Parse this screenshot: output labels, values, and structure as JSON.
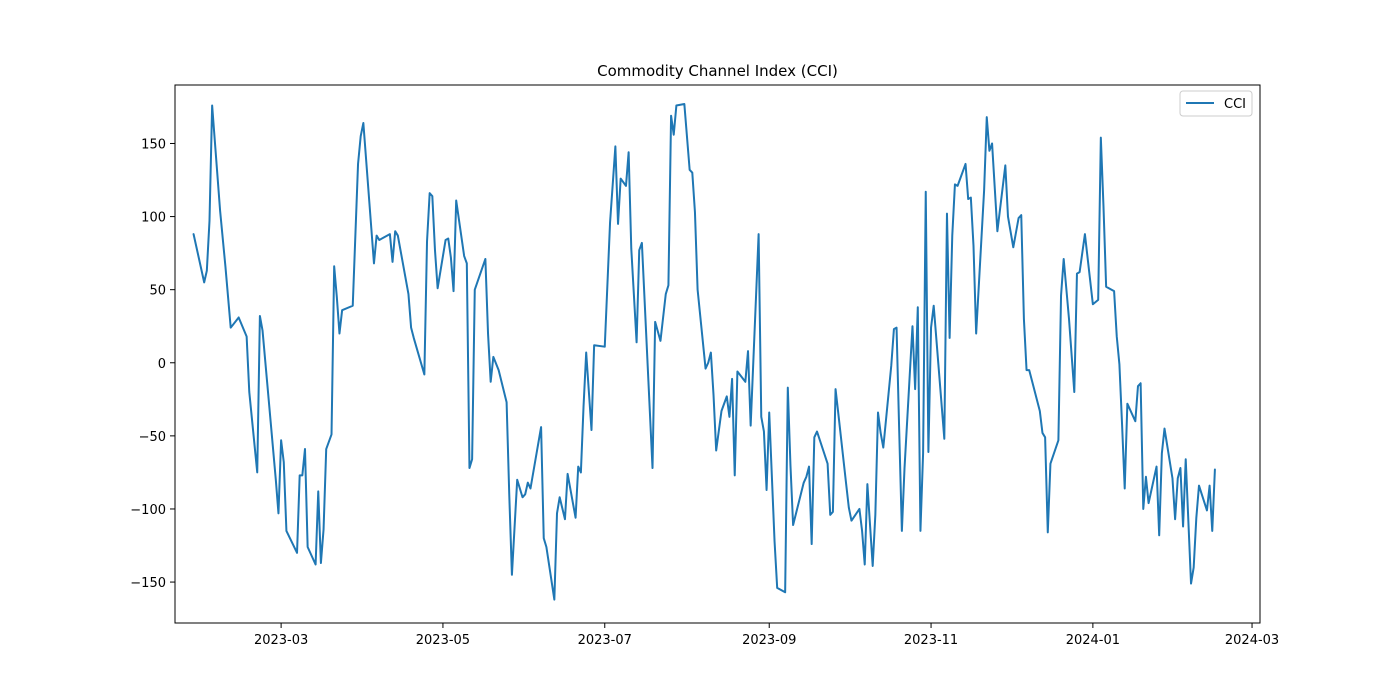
{
  "chart_data": {
    "type": "line",
    "title": "Commodity Channel Index (CCI)",
    "xlabel": "",
    "ylabel": "",
    "x_axis_type": "date",
    "xlim": [
      "2023-01-20",
      "2024-03-04"
    ],
    "ylim": [
      -178,
      190
    ],
    "x_ticks": [
      "2023-03-01",
      "2023-05-01",
      "2023-07-01",
      "2023-09-01",
      "2023-11-01",
      "2024-01-01",
      "2024-03-01"
    ],
    "x_tick_labels": [
      "2023-03",
      "2023-05",
      "2023-07",
      "2023-09",
      "2023-11",
      "2024-01",
      "2024-03"
    ],
    "y_ticks": [
      -150,
      -100,
      -50,
      0,
      50,
      100,
      150
    ],
    "y_tick_labels": [
      "−150",
      "−100",
      "−50",
      "0",
      "50",
      "100",
      "150"
    ],
    "grid": false,
    "legend": "top-right",
    "series": [
      {
        "name": "CCI",
        "color": "#1f77b4",
        "x": [
          "2023-01-27",
          "2023-01-31",
          "2023-02-01",
          "2023-02-02",
          "2023-02-03",
          "2023-02-06",
          "2023-02-08",
          "2023-02-09",
          "2023-02-10",
          "2023-02-13",
          "2023-02-16",
          "2023-02-17",
          "2023-02-20",
          "2023-02-21",
          "2023-02-22",
          "2023-02-27",
          "2023-02-28",
          "2023-03-01",
          "2023-03-02",
          "2023-03-03",
          "2023-03-07",
          "2023-03-08",
          "2023-03-09",
          "2023-03-10",
          "2023-03-11",
          "2023-03-14",
          "2023-03-15",
          "2023-03-16",
          "2023-03-17",
          "2023-03-18",
          "2023-03-20",
          "2023-03-21",
          "2023-03-22",
          "2023-03-23",
          "2023-03-24",
          "2023-03-28",
          "2023-03-30",
          "2023-03-31",
          "2023-04-01",
          "2023-04-04",
          "2023-04-05",
          "2023-04-06",
          "2023-04-07",
          "2023-04-11",
          "2023-04-12",
          "2023-04-13",
          "2023-04-14",
          "2023-04-18",
          "2023-04-19",
          "2023-04-20",
          "2023-04-24",
          "2023-04-25",
          "2023-04-26",
          "2023-04-27",
          "2023-04-28",
          "2023-04-29",
          "2023-05-02",
          "2023-05-03",
          "2023-05-04",
          "2023-05-05",
          "2023-05-06",
          "2023-05-09",
          "2023-05-10",
          "2023-05-11",
          "2023-05-12",
          "2023-05-13",
          "2023-05-17",
          "2023-05-18",
          "2023-05-19",
          "2023-05-20",
          "2023-05-22",
          "2023-05-25",
          "2023-05-26",
          "2023-05-27",
          "2023-05-29",
          "2023-05-31",
          "2023-06-01",
          "2023-06-02",
          "2023-06-03",
          "2023-06-07",
          "2023-06-08",
          "2023-06-09",
          "2023-06-12",
          "2023-06-13",
          "2023-06-14",
          "2023-06-16",
          "2023-06-17",
          "2023-06-20",
          "2023-06-21",
          "2023-06-22",
          "2023-06-23",
          "2023-06-24",
          "2023-06-26",
          "2023-06-27",
          "2023-07-01",
          "2023-07-03",
          "2023-07-05",
          "2023-07-06",
          "2023-07-07",
          "2023-07-09",
          "2023-07-10",
          "2023-07-11",
          "2023-07-13",
          "2023-07-14",
          "2023-07-15",
          "2023-07-19",
          "2023-07-20",
          "2023-07-22",
          "2023-07-24",
          "2023-07-25",
          "2023-07-26",
          "2023-07-27",
          "2023-07-28",
          "2023-07-31",
          "2023-08-02",
          "2023-08-03",
          "2023-08-04",
          "2023-08-05",
          "2023-08-08",
          "2023-08-09",
          "2023-08-10",
          "2023-08-11",
          "2023-08-12",
          "2023-08-14",
          "2023-08-16",
          "2023-08-17",
          "2023-08-18",
          "2023-08-19",
          "2023-08-20",
          "2023-08-23",
          "2023-08-24",
          "2023-08-25",
          "2023-08-28",
          "2023-08-29",
          "2023-08-30",
          "2023-08-31",
          "2023-09-01",
          "2023-09-03",
          "2023-09-04",
          "2023-09-07",
          "2023-09-08",
          "2023-09-09",
          "2023-09-10",
          "2023-09-14",
          "2023-09-15",
          "2023-09-16",
          "2023-09-17",
          "2023-09-18",
          "2023-09-19",
          "2023-09-23",
          "2023-09-24",
          "2023-09-25",
          "2023-09-26",
          "2023-09-27",
          "2023-09-30",
          "2023-10-01",
          "2023-10-02",
          "2023-10-05",
          "2023-10-06",
          "2023-10-07",
          "2023-10-08",
          "2023-10-10",
          "2023-10-11",
          "2023-10-12",
          "2023-10-13",
          "2023-10-14",
          "2023-10-17",
          "2023-10-18",
          "2023-10-19",
          "2023-10-20",
          "2023-10-21",
          "2023-10-22",
          "2023-10-25",
          "2023-10-26",
          "2023-10-27",
          "2023-10-28",
          "2023-10-29",
          "2023-10-30",
          "2023-10-31",
          "2023-11-01",
          "2023-11-02",
          "2023-11-06",
          "2023-11-07",
          "2023-11-08",
          "2023-11-09",
          "2023-11-10",
          "2023-11-11",
          "2023-11-14",
          "2023-11-15",
          "2023-11-16",
          "2023-11-17",
          "2023-11-18",
          "2023-11-21",
          "2023-11-22",
          "2023-11-23",
          "2023-11-24",
          "2023-11-26",
          "2023-11-29",
          "2023-11-30",
          "2023-12-02",
          "2023-12-04",
          "2023-12-05",
          "2023-12-06",
          "2023-12-07",
          "2023-12-08",
          "2023-12-12",
          "2023-12-13",
          "2023-12-14",
          "2023-12-15",
          "2023-12-16",
          "2023-12-19",
          "2023-12-20",
          "2023-12-21",
          "2023-12-23",
          "2023-12-25",
          "2023-12-26",
          "2023-12-27",
          "2023-12-29",
          "2024-01-01",
          "2024-01-03",
          "2024-01-04",
          "2024-01-05",
          "2024-01-06",
          "2024-01-09",
          "2024-01-10",
          "2024-01-11",
          "2024-01-12",
          "2024-01-13",
          "2024-01-14",
          "2024-01-17",
          "2024-01-18",
          "2024-01-19",
          "2024-01-20",
          "2024-01-21",
          "2024-01-22",
          "2024-01-25",
          "2024-01-26",
          "2024-01-27",
          "2024-01-28",
          "2024-01-31",
          "2024-02-01",
          "2024-02-02",
          "2024-02-03",
          "2024-02-04",
          "2024-02-05",
          "2024-02-07",
          "2024-02-08",
          "2024-02-09",
          "2024-02-10",
          "2024-02-13",
          "2024-02-14",
          "2024-02-15",
          "2024-02-16"
        ],
        "y": [
          88,
          55,
          63,
          97,
          176,
          104,
          66,
          45,
          24,
          31,
          18,
          -20,
          -75,
          32,
          22,
          -80,
          -103,
          -53,
          -68,
          -115,
          -130,
          -77,
          -77,
          -59,
          -126,
          -138,
          -88,
          -137,
          -114,
          -59,
          -49,
          66,
          45,
          20,
          36,
          39,
          136,
          155,
          164,
          92,
          68,
          87,
          84,
          88,
          69,
          90,
          87,
          47,
          24,
          17,
          -8,
          83,
          116,
          114,
          77,
          51,
          84,
          85,
          72,
          49,
          111,
          73,
          68,
          -72,
          -66,
          50,
          71,
          20,
          -13,
          4,
          -5,
          -27,
          -90,
          -145,
          -80,
          -92,
          -90,
          -82,
          -86,
          -44,
          -120,
          -126,
          -162,
          -103,
          -92,
          -107,
          -76,
          -106,
          -71,
          -75,
          -30,
          7,
          -46,
          12,
          11,
          96,
          148,
          95,
          126,
          121,
          144,
          78,
          14,
          77,
          82,
          -72,
          28,
          15,
          47,
          53,
          169,
          156,
          176,
          177,
          132,
          130,
          103,
          50,
          -4,
          0,
          7,
          -22,
          -60,
          -33,
          -23,
          -37,
          -11,
          -77,
          -6,
          -13,
          8,
          -43,
          88,
          -37,
          -47,
          -87,
          -34,
          -122,
          -154,
          -157,
          -17,
          -70,
          -111,
          -82,
          -78,
          -71,
          -124,
          -51,
          -47,
          -69,
          -104,
          -102,
          -18,
          -34,
          -83,
          -99,
          -108,
          -100,
          -115,
          -138,
          -83,
          -139,
          -104,
          -34,
          -48,
          -58,
          -2,
          23,
          24,
          -47,
          -115,
          -72,
          25,
          -18,
          38,
          -115,
          -62,
          117,
          -61,
          24,
          39,
          -52,
          102,
          17,
          87,
          122,
          121,
          136,
          112,
          113,
          80,
          20,
          118,
          168,
          145,
          150,
          90,
          135,
          100,
          79,
          99,
          101,
          30,
          -5,
          -5,
          -33,
          -48,
          -51,
          -116,
          -69,
          -53,
          46,
          71,
          30,
          -20,
          61,
          62,
          88,
          40,
          43,
          154,
          107,
          52,
          49,
          18,
          -1,
          -42,
          -86,
          -28,
          -40,
          -16,
          -14,
          -100,
          -78,
          -96,
          -71,
          -118,
          -62,
          -45,
          -79,
          -107,
          -79,
          -72,
          -112,
          -66,
          -151,
          -140,
          -106,
          -84,
          -101,
          -84,
          -115,
          -73
        ]
      }
    ]
  }
}
